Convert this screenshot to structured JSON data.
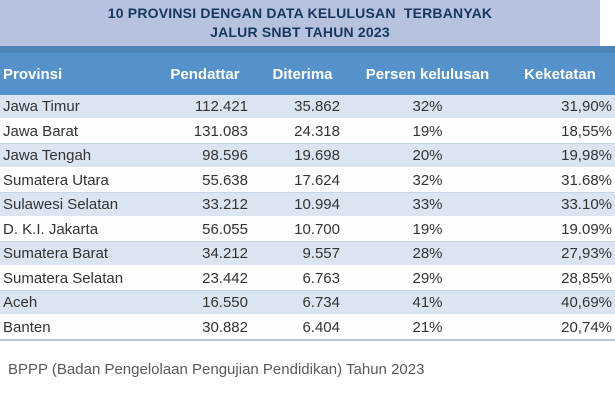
{
  "chart_data": {
    "type": "table",
    "title": "10 PROVINSI DENGAN DATA KELULUSAN TERBANYAK",
    "subtitle": "JALUR SNBT TAHUN 2023",
    "columns": [
      "Provinsi",
      "Pendattar",
      "Diterima",
      "Persen kelulusan",
      "Keketatan"
    ],
    "rows": [
      [
        "Jawa Timur",
        "112.421",
        "35.862",
        "32%",
        "31,90%"
      ],
      [
        "Jawa Barat",
        "131.083",
        "24.318",
        "19%",
        "18,55%"
      ],
      [
        "Jawa Tengah",
        "98.596",
        "19.698",
        "20%",
        "19,98%"
      ],
      [
        "Sumatera Utara",
        "55.638",
        "17.624",
        "32%",
        "31.68%"
      ],
      [
        "Sulawesi Selatan",
        "33.212",
        "10.994",
        "33%",
        "33.10%"
      ],
      [
        "D. K.I. Jakarta",
        "56.055",
        "10.700",
        "19%",
        "19.09%"
      ],
      [
        "Sumatera Barat",
        "34.212",
        "9.557",
        "28%",
        "27,93%"
      ],
      [
        "Sumatera Selatan",
        "23.442",
        "6.763",
        "29%",
        "28,85%"
      ],
      [
        "Aceh",
        "16.550",
        "6.734",
        "41%",
        "40,69%"
      ],
      [
        "Banten",
        "30.882",
        "6.404",
        "21%",
        "20,74%"
      ]
    ],
    "source": "BPPP (Badan Pengelolaan Pengujian Pendidikan) Tahun 2023",
    "legend_position": "none",
    "grid": "row-stripes"
  },
  "title": {
    "line1": "10 PROVINSI DENGAN DATA KELULUSAN  TERBANYAK",
    "line2": "JALUR SNBT TAHUN 2023"
  },
  "footer": {
    "source_note": "BPPP (Badan Pengelolaan Pengujian Pendidikan) Tahun 2023"
  },
  "colors": {
    "title_band_bg": "#b7c2e0",
    "title_text": "#17375d",
    "header_bg": "#5592cb",
    "header_top_strip": "#4d85bb",
    "header_text": "#ffffff",
    "row_alt_bg": "#dbe5f2",
    "row_bg": "#fdfeff",
    "cell_text": "#333333",
    "footer_text": "#595959"
  }
}
